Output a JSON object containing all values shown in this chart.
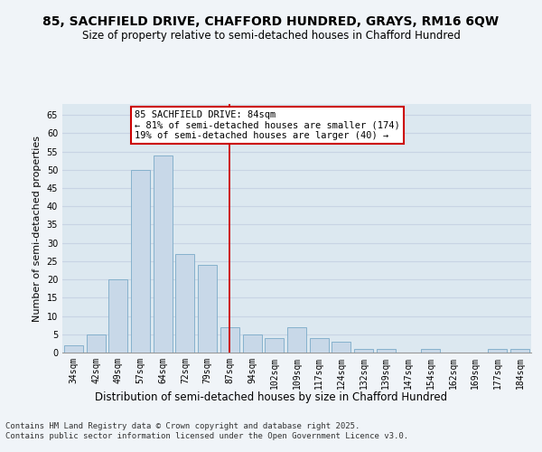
{
  "title": "85, SACHFIELD DRIVE, CHAFFORD HUNDRED, GRAYS, RM16 6QW",
  "subtitle": "Size of property relative to semi-detached houses in Chafford Hundred",
  "xlabel": "Distribution of semi-detached houses by size in Chafford Hundred",
  "ylabel": "Number of semi-detached properties",
  "categories": [
    "34sqm",
    "42sqm",
    "49sqm",
    "57sqm",
    "64sqm",
    "72sqm",
    "79sqm",
    "87sqm",
    "94sqm",
    "102sqm",
    "109sqm",
    "117sqm",
    "124sqm",
    "132sqm",
    "139sqm",
    "147sqm",
    "154sqm",
    "162sqm",
    "169sqm",
    "177sqm",
    "184sqm"
  ],
  "values": [
    2,
    5,
    20,
    50,
    54,
    27,
    24,
    7,
    5,
    4,
    7,
    4,
    3,
    1,
    1,
    0,
    1,
    0,
    0,
    1,
    1
  ],
  "bar_color": "#c8d8e8",
  "bar_edge_color": "#7aaac8",
  "vline_x": 7,
  "vline_color": "#cc0000",
  "annotation_text": "85 SACHFIELD DRIVE: 84sqm\n← 81% of semi-detached houses are smaller (174)\n19% of semi-detached houses are larger (40) →",
  "annotation_box_color": "#ffffff",
  "annotation_box_edge": "#cc0000",
  "ylim": [
    0,
    68
  ],
  "yticks": [
    0,
    5,
    10,
    15,
    20,
    25,
    30,
    35,
    40,
    45,
    50,
    55,
    60,
    65
  ],
  "grid_color": "#c8d4e4",
  "background_color": "#dce8f0",
  "fig_background": "#f0f4f8",
  "footer": "Contains HM Land Registry data © Crown copyright and database right 2025.\nContains public sector information licensed under the Open Government Licence v3.0.",
  "title_fontsize": 10,
  "subtitle_fontsize": 8.5,
  "xlabel_fontsize": 8.5,
  "ylabel_fontsize": 8,
  "tick_fontsize": 7,
  "footer_fontsize": 6.5,
  "annotation_fontsize": 7.5
}
